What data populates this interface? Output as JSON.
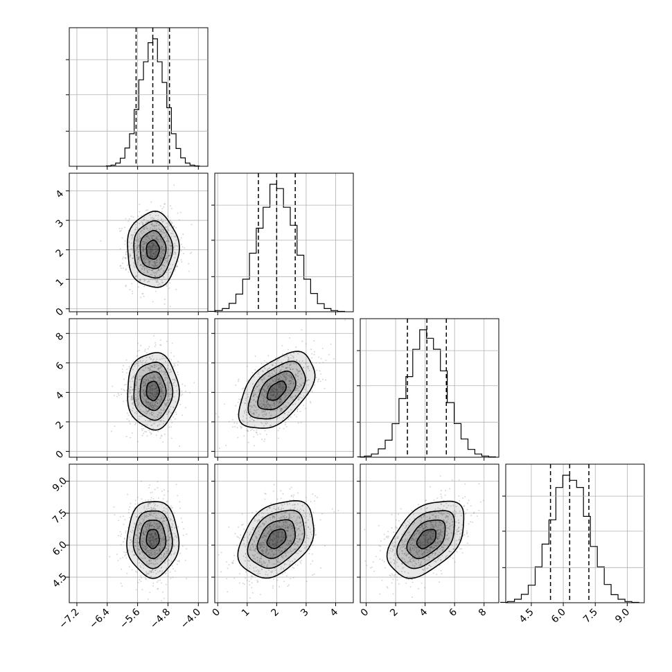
{
  "chart_data": {
    "type": "corner",
    "title": "",
    "params": [
      {
        "mean": -5.2,
        "sd": 0.34,
        "quantiles": [
          -5.64,
          -5.2,
          -4.76
        ],
        "range": [
          -7.4,
          -3.75
        ],
        "ticks": [
          -7.2,
          -6.4,
          -5.6,
          -4.8,
          -4.0
        ],
        "ticklabels": [
          "−7.2",
          "−6.4",
          "−5.6",
          "−4.8",
          "−4.0"
        ]
      },
      {
        "mean": 2.0,
        "sd": 0.64,
        "quantiles": [
          1.38,
          2.0,
          2.63
        ],
        "range": [
          -0.1,
          4.6
        ],
        "ticks": [
          0,
          1,
          2,
          3,
          4
        ],
        "ticklabels": [
          "0",
          "1",
          "2",
          "3",
          "4"
        ]
      },
      {
        "mean": 4.1,
        "sd": 1.3,
        "quantiles": [
          2.8,
          4.12,
          5.44
        ],
        "range": [
          -0.4,
          9.0
        ],
        "ticks": [
          0,
          2,
          4,
          6,
          8
        ],
        "ticklabels": [
          "0",
          "2",
          "4",
          "6",
          "8"
        ]
      },
      {
        "mean": 6.3,
        "sd": 0.9,
        "quantiles": [
          5.4,
          6.3,
          7.2
        ],
        "range": [
          3.3,
          9.8
        ],
        "ticks": [
          4.5,
          6.0,
          7.5,
          9.0
        ],
        "ticklabels": [
          "4.5",
          "6.0",
          "7.5",
          "9.0"
        ]
      }
    ],
    "correlations": [
      {
        "pair": [
          0,
          1
        ],
        "rho": 0.0
      },
      {
        "pair": [
          0,
          2
        ],
        "rho": 0.0
      },
      {
        "pair": [
          0,
          3
        ],
        "rho": 0.0
      },
      {
        "pair": [
          1,
          2
        ],
        "rho": 0.5
      },
      {
        "pair": [
          1,
          3
        ],
        "rho": 0.35
      },
      {
        "pair": [
          2,
          3
        ],
        "rho": 0.45
      }
    ],
    "contour_levels_sigma": [
      0.5,
      1.0,
      1.5,
      2.0
    ],
    "histogram_bins": 20,
    "grid": true,
    "colors": {
      "line": "#000000",
      "points": "#8a8a8a",
      "grid": "#b0b0b0"
    }
  }
}
